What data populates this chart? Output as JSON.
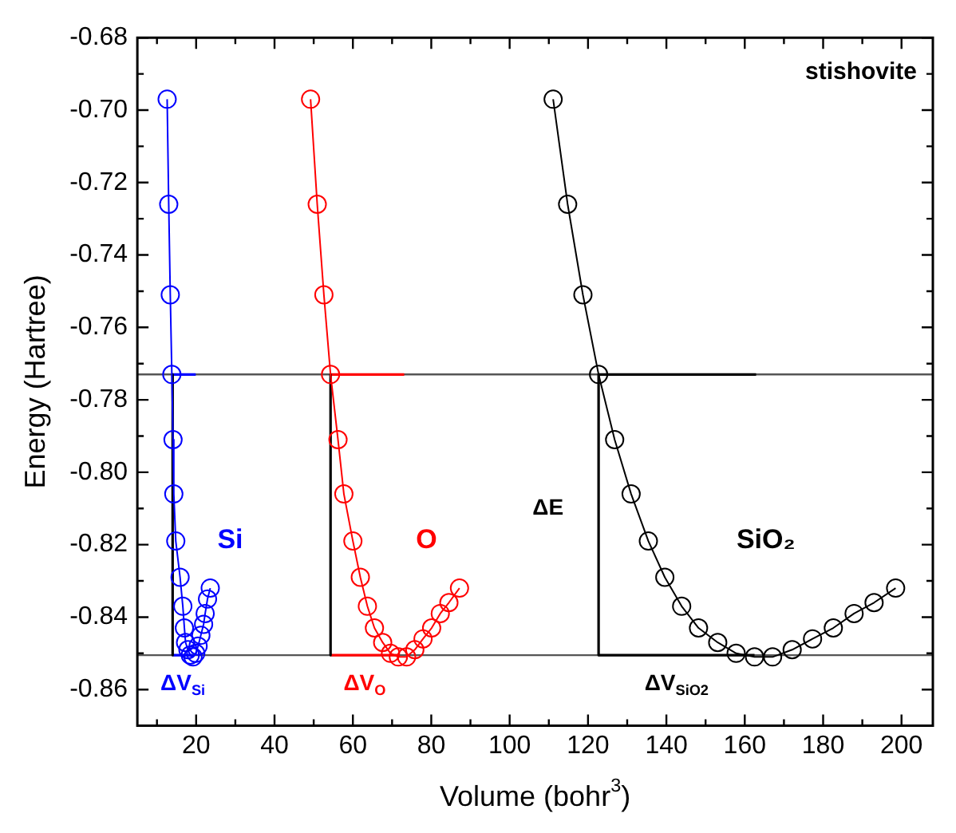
{
  "chart_data": {
    "type": "line",
    "marker": "circle",
    "line_style": "solid",
    "xlabel": "Volume (bohr$^{3}$)",
    "ylabel": "Energy (Hartree)",
    "xlim": [
      5,
      208
    ],
    "ylim": [
      -0.87,
      -0.68
    ],
    "xticks": [
      {
        "value": 10,
        "label": null
      },
      20,
      {
        "value": 30,
        "label": null
      },
      40,
      {
        "value": 50,
        "label": null
      },
      60,
      {
        "value": 70,
        "label": null
      },
      80,
      {
        "value": 90,
        "label": null
      },
      100,
      {
        "value": 110,
        "label": null
      },
      120,
      {
        "value": 130,
        "label": null
      },
      140,
      {
        "value": 150,
        "label": null
      },
      160,
      {
        "value": 170,
        "label": null
      },
      180,
      {
        "value": 190,
        "label": null
      },
      200
    ],
    "yticks": [
      {
        "value": -0.86,
        "label": "-0.86"
      },
      {
        "value": -0.85,
        "label": null
      },
      {
        "value": -0.84,
        "label": "-0.84"
      },
      {
        "value": -0.83,
        "label": null
      },
      {
        "value": -0.82,
        "label": "-0.82"
      },
      {
        "value": -0.81,
        "label": null
      },
      {
        "value": -0.8,
        "label": "-0.80"
      },
      {
        "value": -0.79,
        "label": null
      },
      {
        "value": -0.78,
        "label": "-0.78"
      },
      {
        "value": -0.77,
        "label": null
      },
      {
        "value": -0.76,
        "label": "-0.76"
      },
      {
        "value": -0.75,
        "label": null
      },
      {
        "value": -0.74,
        "label": "-0.74"
      },
      {
        "value": -0.73,
        "label": null
      },
      {
        "value": -0.72,
        "label": "-0.72"
      },
      {
        "value": -0.71,
        "label": null
      },
      {
        "value": -0.7,
        "label": "-0.70"
      },
      {
        "value": -0.69,
        "label": null
      },
      {
        "value": -0.68,
        "label": "-0.68"
      }
    ],
    "ref_lines": [
      {
        "axis": "y",
        "value": -0.773,
        "color": "#555555"
      },
      {
        "axis": "y",
        "value": -0.8505,
        "color": "#555555"
      }
    ],
    "annotations": [
      "stishovite",
      {
        "text": "ΔE",
        "x": 122.7,
        "y": -0.81
      },
      {
        "text": "ΔV$_{Si}$",
        "x": 16.6,
        "y": -0.8505
      },
      {
        "text": "ΔV$_{O}$",
        "x": 63,
        "y": -0.8505
      },
      {
        "text": "ΔV$_{SiO2}$",
        "x": 142.6,
        "y": -0.8505
      }
    ],
    "series": [
      {
        "name": "Si",
        "color": "#0000ff",
        "x": [
          12.6,
          13.0,
          13.4,
          13.8,
          14.1,
          14.3,
          14.8,
          15.9,
          16.6,
          17.0,
          17.3,
          17.9,
          18.5,
          19.2,
          19.9,
          20.5,
          21.2,
          21.9,
          22.3,
          22.9,
          23.6
        ],
        "values": [
          -0.697,
          -0.726,
          -0.751,
          -0.773,
          -0.791,
          -0.806,
          -0.819,
          -0.829,
          -0.837,
          -0.843,
          -0.847,
          -0.849,
          -0.8505,
          -0.851,
          -0.85,
          -0.848,
          -0.845,
          -0.842,
          -0.839,
          -0.835,
          -0.832
        ]
      },
      {
        "name": "O",
        "color": "#ff0000",
        "x": [
          49.2,
          50.9,
          52.6,
          54.3,
          56.2,
          57.7,
          60.0,
          61.9,
          63.7,
          65.5,
          67.6,
          69.6,
          71.6,
          73.7,
          75.8,
          77.9,
          80.1,
          82.3,
          84.5,
          87.2
        ],
        "values": [
          -0.697,
          -0.726,
          -0.751,
          -0.773,
          -0.791,
          -0.806,
          -0.819,
          -0.829,
          -0.837,
          -0.843,
          -0.847,
          -0.85,
          -0.851,
          -0.851,
          -0.849,
          -0.846,
          -0.843,
          -0.839,
          -0.836,
          -0.832
        ]
      },
      {
        "name": "SiO₂",
        "color": "#000000",
        "x": [
          111.1,
          114.8,
          118.7,
          122.7,
          126.8,
          131.0,
          135.4,
          139.6,
          143.9,
          148.2,
          153.1,
          157.8,
          162.5,
          167.1,
          172.1,
          177.3,
          182.6,
          187.9,
          193.0,
          198.5
        ],
        "values": [
          -0.697,
          -0.726,
          -0.751,
          -0.773,
          -0.791,
          -0.806,
          -0.819,
          -0.829,
          -0.837,
          -0.843,
          -0.847,
          -0.85,
          -0.851,
          -0.851,
          -0.849,
          -0.846,
          -0.843,
          -0.839,
          -0.836,
          -0.832
        ]
      },
      {
        "color": "#000000",
        "marker": "none",
        "x": [
          14.0,
          14.0
        ],
        "values": [
          -0.773,
          -0.8505
        ]
      },
      {
        "color": "#000000",
        "marker": "none",
        "x": [
          54.3,
          54.3
        ],
        "values": [
          -0.773,
          -0.8505
        ]
      },
      {
        "color": "#000000",
        "marker": "none",
        "x": [
          122.7,
          122.7
        ],
        "values": [
          -0.773,
          -0.8505
        ]
      },
      {
        "color": "#0000ff",
        "marker": "none",
        "x": [
          13.8,
          19.9
        ],
        "values": [
          -0.773,
          -0.773
        ]
      },
      {
        "color": "#ff0000",
        "marker": "none",
        "x": [
          54.3,
          73.1
        ],
        "values": [
          -0.773,
          -0.773
        ]
      },
      {
        "color": "#000000",
        "marker": "none",
        "x": [
          122.7,
          162.9
        ],
        "values": [
          -0.773,
          -0.773
        ]
      },
      {
        "color": "#0000ff",
        "marker": "none",
        "x": [
          14.0,
          19.2
        ],
        "values": [
          -0.8505,
          -0.8505
        ]
      },
      {
        "color": "#ff0000",
        "marker": "none",
        "x": [
          54.3,
          71.6
        ],
        "values": [
          -0.8505,
          -0.8505
        ]
      },
      {
        "color": "#000000",
        "marker": "none",
        "x": [
          122.7,
          162.5
        ],
        "values": [
          -0.8505,
          -0.8505
        ]
      }
    ]
  }
}
